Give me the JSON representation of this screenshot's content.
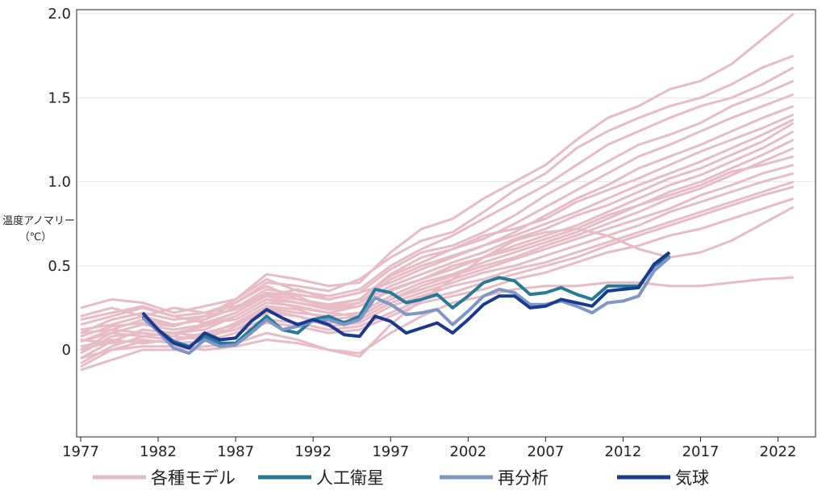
{
  "chart_data": {
    "type": "line",
    "ylabel": "温度アノマリー",
    "yunit": "（℃）",
    "xlim": [
      1977,
      2024
    ],
    "ylim": [
      -0.5,
      2.0
    ],
    "xticks": [
      "1977",
      "1982",
      "1987",
      "1992",
      "1997",
      "2002",
      "2007",
      "2012",
      "2017",
      "2022"
    ],
    "yticks": [
      {
        "value": 2.0,
        "label": "2.0"
      },
      {
        "value": 1.5,
        "label": "1.5"
      },
      {
        "value": 1.0,
        "label": "1.0"
      },
      {
        "value": 0.5,
        "label": "0.5"
      },
      {
        "value": 0.0,
        "label": "0"
      }
    ],
    "grid": true,
    "legend_position": "bottom",
    "colors": {
      "models": "#e8bcc6",
      "satellite": "#267a97",
      "reanalysis": "#7f96c6",
      "balloon": "#1a3a8f"
    },
    "legend": [
      {
        "key": "models",
        "label": "各種モデル"
      },
      {
        "key": "satellite",
        "label": "人工衛星"
      },
      {
        "key": "reanalysis",
        "label": "再分析"
      },
      {
        "key": "balloon",
        "label": "気球"
      }
    ],
    "model_x": [
      1977,
      1979,
      1981,
      1983,
      1985,
      1987,
      1989,
      1991,
      1993,
      1995,
      1997,
      1999,
      2001,
      2003,
      2005,
      2007,
      2009,
      2011,
      2013,
      2015,
      2017,
      2019,
      2021,
      2023
    ],
    "model_runs": [
      [
        0.25,
        0.3,
        0.28,
        0.22,
        0.26,
        0.3,
        0.45,
        0.42,
        0.38,
        0.4,
        0.58,
        0.72,
        0.78,
        0.9,
        1.0,
        1.1,
        1.25,
        1.38,
        1.45,
        1.55,
        1.6,
        1.7,
        1.85,
        2.0
      ],
      [
        0.15,
        0.2,
        0.25,
        0.2,
        0.22,
        0.28,
        0.4,
        0.38,
        0.35,
        0.42,
        0.55,
        0.65,
        0.7,
        0.82,
        0.95,
        1.05,
        1.2,
        1.3,
        1.38,
        1.45,
        1.5,
        1.58,
        1.68,
        1.75
      ],
      [
        0.1,
        0.18,
        0.22,
        0.18,
        0.2,
        0.3,
        0.42,
        0.35,
        0.32,
        0.36,
        0.5,
        0.6,
        0.68,
        0.78,
        0.88,
        0.98,
        1.1,
        1.22,
        1.3,
        1.38,
        1.45,
        1.5,
        1.58,
        1.68
      ],
      [
        0.05,
        0.12,
        0.18,
        0.15,
        0.18,
        0.25,
        0.36,
        0.33,
        0.3,
        0.34,
        0.48,
        0.58,
        0.62,
        0.7,
        0.8,
        0.92,
        1.02,
        1.12,
        1.22,
        1.28,
        1.35,
        1.45,
        1.52,
        1.6
      ],
      [
        0.0,
        0.1,
        0.15,
        0.12,
        0.15,
        0.22,
        0.33,
        0.3,
        0.27,
        0.3,
        0.45,
        0.55,
        0.6,
        0.66,
        0.75,
        0.85,
        0.95,
        1.05,
        1.15,
        1.22,
        1.3,
        1.38,
        1.45,
        1.52
      ],
      [
        -0.05,
        0.05,
        0.12,
        0.1,
        0.14,
        0.2,
        0.3,
        0.28,
        0.25,
        0.28,
        0.42,
        0.5,
        0.56,
        0.62,
        0.7,
        0.8,
        0.9,
        0.98,
        1.08,
        1.15,
        1.22,
        1.3,
        1.38,
        1.45
      ],
      [
        0.2,
        0.25,
        0.2,
        0.15,
        0.18,
        0.28,
        0.38,
        0.3,
        0.26,
        0.3,
        0.44,
        0.52,
        0.6,
        0.68,
        0.72,
        0.78,
        0.88,
        0.95,
        1.02,
        1.1,
        1.18,
        1.25,
        1.32,
        1.4
      ],
      [
        0.12,
        0.15,
        0.2,
        0.25,
        0.22,
        0.26,
        0.32,
        0.36,
        0.3,
        0.34,
        0.4,
        0.48,
        0.55,
        0.62,
        0.68,
        0.75,
        0.82,
        0.9,
        0.98,
        1.05,
        1.12,
        1.2,
        1.28,
        1.37
      ],
      [
        0.08,
        0.14,
        0.16,
        0.14,
        0.2,
        0.24,
        0.34,
        0.32,
        0.24,
        0.28,
        0.38,
        0.45,
        0.52,
        0.58,
        0.66,
        0.72,
        0.8,
        0.86,
        0.94,
        1.02,
        1.08,
        1.16,
        1.24,
        1.35
      ],
      [
        -0.02,
        0.08,
        0.1,
        0.08,
        0.16,
        0.18,
        0.28,
        0.26,
        0.22,
        0.26,
        0.35,
        0.42,
        0.48,
        0.55,
        0.62,
        0.68,
        0.74,
        0.82,
        0.9,
        0.98,
        1.04,
        1.12,
        1.2,
        1.3
      ],
      [
        -0.1,
        0.0,
        0.05,
        0.05,
        0.1,
        0.15,
        0.25,
        0.22,
        0.2,
        0.22,
        0.32,
        0.4,
        0.45,
        0.52,
        0.58,
        0.64,
        0.7,
        0.78,
        0.86,
        0.94,
        1.0,
        1.08,
        1.16,
        1.25
      ],
      [
        0.05,
        0.1,
        0.08,
        0.1,
        0.12,
        0.2,
        0.3,
        0.25,
        0.22,
        0.2,
        0.3,
        0.38,
        0.44,
        0.5,
        0.55,
        0.62,
        0.68,
        0.75,
        0.82,
        0.9,
        0.96,
        1.04,
        1.12,
        1.2
      ],
      [
        0.18,
        0.22,
        0.26,
        0.2,
        0.16,
        0.22,
        0.32,
        0.28,
        0.24,
        0.26,
        0.36,
        0.42,
        0.5,
        0.55,
        0.6,
        0.66,
        0.72,
        0.8,
        0.86,
        0.92,
        0.98,
        1.06,
        1.1,
        1.15
      ],
      [
        0.0,
        0.05,
        0.12,
        0.1,
        0.08,
        0.16,
        0.26,
        0.24,
        0.18,
        0.2,
        0.3,
        0.36,
        0.42,
        0.48,
        0.54,
        0.6,
        0.66,
        0.72,
        0.78,
        0.84,
        0.92,
        0.98,
        1.05,
        1.1
      ],
      [
        -0.08,
        0.02,
        0.08,
        0.06,
        0.1,
        0.12,
        0.22,
        0.2,
        0.16,
        0.18,
        0.28,
        0.34,
        0.4,
        0.46,
        0.5,
        0.56,
        0.62,
        0.68,
        0.74,
        0.82,
        0.88,
        0.94,
        1.0,
        1.05
      ],
      [
        0.1,
        0.12,
        0.1,
        0.08,
        0.06,
        0.14,
        0.24,
        0.2,
        0.14,
        0.16,
        0.26,
        0.32,
        0.38,
        0.42,
        0.48,
        0.52,
        0.58,
        0.64,
        0.7,
        0.76,
        0.82,
        0.88,
        0.94,
        1.0
      ],
      [
        0.02,
        0.06,
        0.04,
        0.06,
        0.08,
        0.12,
        0.18,
        0.16,
        0.12,
        0.14,
        0.22,
        0.3,
        0.34,
        0.4,
        0.45,
        0.5,
        0.55,
        0.62,
        0.68,
        0.74,
        0.8,
        0.86,
        0.92,
        0.97
      ],
      [
        0.06,
        0.04,
        0.06,
        0.04,
        0.05,
        0.1,
        0.16,
        0.14,
        0.1,
        0.12,
        0.2,
        0.28,
        0.32,
        0.36,
        0.42,
        0.46,
        0.52,
        0.58,
        0.62,
        0.68,
        0.72,
        0.78,
        0.84,
        0.9
      ],
      [
        -0.12,
        -0.06,
        0.0,
        0.0,
        0.02,
        0.04,
        0.1,
        0.06,
        0.0,
        -0.04,
        0.15,
        0.3,
        0.42,
        0.55,
        0.65,
        0.7,
        0.72,
        0.68,
        0.6,
        0.55,
        0.58,
        0.65,
        0.75,
        0.85
      ],
      [
        -0.05,
        0.0,
        0.02,
        0.02,
        0.0,
        0.02,
        0.06,
        0.04,
        0.0,
        -0.02,
        0.1,
        0.2,
        0.28,
        0.32,
        0.36,
        0.38,
        0.38,
        0.4,
        0.4,
        0.38,
        0.38,
        0.4,
        0.42,
        0.43
      ]
    ],
    "series": [
      {
        "key": "satellite",
        "x": [
          1981,
          1982,
          1983,
          1984,
          1985,
          1986,
          1987,
          1988,
          1989,
          1990,
          1991,
          1992,
          1993,
          1994,
          1995,
          1996,
          1997,
          1998,
          1999,
          2000,
          2001,
          2002,
          2003,
          2004,
          2005,
          2006,
          2007,
          2008,
          2009,
          2010,
          2011,
          2012,
          2013,
          2014,
          2015
        ],
        "values": [
          0.2,
          0.12,
          0.05,
          0.02,
          0.08,
          0.04,
          0.04,
          0.12,
          0.2,
          0.12,
          0.1,
          0.18,
          0.2,
          0.16,
          0.2,
          0.36,
          0.34,
          0.28,
          0.3,
          0.33,
          0.25,
          0.32,
          0.4,
          0.43,
          0.41,
          0.33,
          0.34,
          0.37,
          0.33,
          0.3,
          0.38,
          0.38,
          0.38,
          0.5,
          0.56
        ]
      },
      {
        "key": "reanalysis",
        "x": [
          1981,
          1982,
          1983,
          1984,
          1985,
          1986,
          1987,
          1988,
          1989,
          1990,
          1991,
          1992,
          1993,
          1994,
          1995,
          1996,
          1997,
          1998,
          1999,
          2000,
          2001,
          2002,
          2003,
          2004,
          2005,
          2006,
          2007,
          2008,
          2009,
          2010,
          2011,
          2012,
          2013,
          2014,
          2015
        ],
        "values": [
          0.19,
          0.11,
          0.01,
          -0.02,
          0.06,
          0.02,
          0.03,
          0.1,
          0.18,
          0.12,
          0.14,
          0.17,
          0.18,
          0.15,
          0.18,
          0.31,
          0.27,
          0.21,
          0.22,
          0.24,
          0.15,
          0.23,
          0.32,
          0.36,
          0.34,
          0.27,
          0.27,
          0.29,
          0.26,
          0.22,
          0.28,
          0.29,
          0.32,
          0.47,
          0.55
        ]
      },
      {
        "key": "balloon",
        "x": [
          1981,
          1982,
          1983,
          1984,
          1985,
          1986,
          1987,
          1988,
          1989,
          1990,
          1991,
          1992,
          1993,
          1994,
          1995,
          1996,
          1997,
          1998,
          1999,
          2000,
          2001,
          2002,
          2003,
          2004,
          2005,
          2006,
          2007,
          2008,
          2009,
          2010,
          2011,
          2012,
          2013,
          2014,
          2015
        ],
        "values": [
          0.22,
          0.12,
          0.04,
          0.01,
          0.1,
          0.06,
          0.07,
          0.17,
          0.24,
          0.19,
          0.15,
          0.18,
          0.15,
          0.09,
          0.08,
          0.2,
          0.17,
          0.1,
          0.13,
          0.16,
          0.1,
          0.18,
          0.27,
          0.32,
          0.32,
          0.25,
          0.26,
          0.3,
          0.28,
          0.26,
          0.35,
          0.36,
          0.37,
          0.51,
          0.58
        ]
      }
    ]
  }
}
